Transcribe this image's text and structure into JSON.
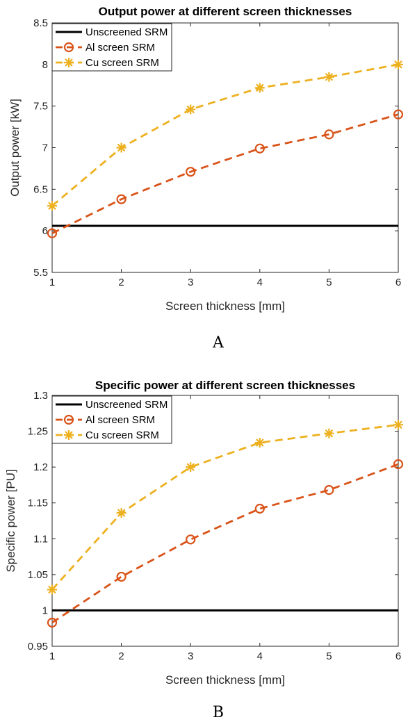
{
  "colors": {
    "unscreened": "#000000",
    "al": "#D95319",
    "cu": "#EDB120",
    "axis": "#262626"
  },
  "chart_data": [
    {
      "type": "line",
      "panel_label": "A",
      "title": "Output power at different screen thicknesses",
      "xlabel": "Screen thickness [mm]",
      "ylabel": "Output power [kW]",
      "xlim": [
        1,
        6
      ],
      "ylim": [
        5.5,
        8.5
      ],
      "xticks": [
        1,
        2,
        3,
        4,
        5,
        6
      ],
      "yticks": [
        5.5,
        6,
        6.5,
        7,
        7.5,
        8,
        8.5
      ],
      "grid": false,
      "legend_position": "top-left",
      "x": [
        1,
        2,
        3,
        4,
        5,
        6
      ],
      "series": [
        {
          "name": "Unscreened SRM",
          "style": "solid",
          "marker": "none",
          "color": "#000000",
          "values": [
            6.06,
            6.06,
            6.06,
            6.06,
            6.06,
            6.06
          ]
        },
        {
          "name": "Al screen SRM",
          "style": "dashed",
          "marker": "circle",
          "color": "#D95319",
          "values": [
            5.97,
            6.38,
            6.71,
            6.99,
            7.16,
            7.4
          ]
        },
        {
          "name": "Cu screen SRM",
          "style": "dashed",
          "marker": "asterisk",
          "color": "#EDB120",
          "values": [
            6.3,
            7.0,
            7.46,
            7.72,
            7.85,
            8.0
          ]
        }
      ]
    },
    {
      "type": "line",
      "panel_label": "B",
      "title": "Specific power at different screen thicknesses",
      "xlabel": "Screen thickness [mm]",
      "ylabel": "Specific power [PU]",
      "xlim": [
        1,
        6
      ],
      "ylim": [
        0.95,
        1.3
      ],
      "xticks": [
        1,
        2,
        3,
        4,
        5,
        6
      ],
      "yticks": [
        0.95,
        1,
        1.05,
        1.1,
        1.15,
        1.2,
        1.25,
        1.3
      ],
      "grid": false,
      "legend_position": "top-left",
      "x": [
        1,
        2,
        3,
        4,
        5,
        6
      ],
      "series": [
        {
          "name": "Unscreened SRM",
          "style": "solid",
          "marker": "none",
          "color": "#000000",
          "values": [
            1.0,
            1.0,
            1.0,
            1.0,
            1.0,
            1.0
          ]
        },
        {
          "name": "Al screen SRM",
          "style": "dashed",
          "marker": "circle",
          "color": "#D95319",
          "values": [
            0.983,
            1.047,
            1.099,
            1.142,
            1.168,
            1.204
          ]
        },
        {
          "name": "Cu screen SRM",
          "style": "dashed",
          "marker": "asterisk",
          "color": "#EDB120",
          "values": [
            1.029,
            1.136,
            1.2,
            1.234,
            1.247,
            1.259
          ]
        }
      ]
    }
  ]
}
